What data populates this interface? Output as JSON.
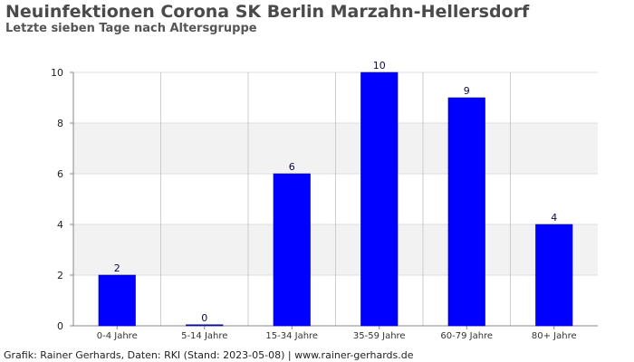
{
  "chart_data": {
    "type": "bar",
    "title": "Neuinfektionen Corona SK Berlin Marzahn-Hellersdorf",
    "subtitle": "Letzte sieben Tage nach Altersgruppe",
    "categories": [
      "0-4 Jahre",
      "5-14 Jahre",
      "15-34 Jahre",
      "35-59 Jahre",
      "60-79 Jahre",
      "80+ Jahre"
    ],
    "values": [
      2,
      0,
      6,
      10,
      9,
      4
    ],
    "ylim": [
      0,
      10
    ],
    "yticks": [
      0,
      2,
      4,
      6,
      8,
      10
    ],
    "xlabel": "",
    "ylabel": "",
    "grid": true,
    "bar_color": "#0000ff",
    "band_color": "#f2f2f2"
  },
  "footer": "Grafik: Rainer Gerhards, Daten: RKI (Stand: 2023-05-08) | www.rainer-gerhards.de"
}
